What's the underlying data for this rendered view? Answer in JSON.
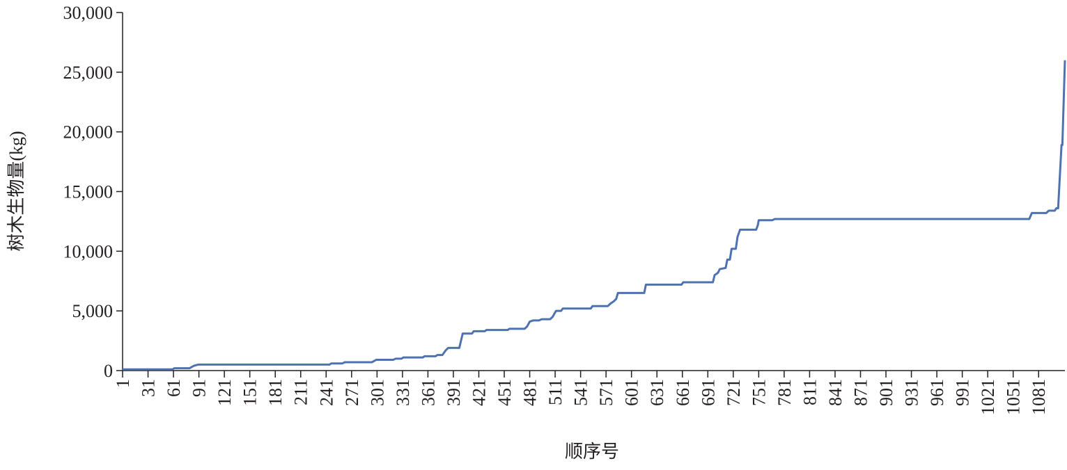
{
  "chart_data": {
    "type": "line",
    "x_label": "顺序号",
    "y_label": "树木生物量(kg)",
    "xlim": [
      1,
      1112
    ],
    "ylim": [
      0,
      30000
    ],
    "xticks": [
      1,
      31,
      61,
      91,
      121,
      151,
      181,
      211,
      241,
      271,
      301,
      331,
      361,
      391,
      421,
      451,
      481,
      511,
      541,
      571,
      601,
      631,
      661,
      691,
      721,
      751,
      781,
      811,
      841,
      871,
      901,
      931,
      961,
      991,
      1021,
      1051,
      1081
    ],
    "yticks": [
      0,
      {
        "value": 5000,
        "label": "5,000"
      },
      {
        "value": 10000,
        "label": "10,000"
      },
      {
        "value": 15000,
        "label": "15,000"
      },
      {
        "value": 20000,
        "label": "20,000"
      },
      {
        "value": 25000,
        "label": "25,000"
      },
      {
        "value": 30000,
        "label": "30,000"
      }
    ],
    "color": "#4e72b0",
    "x": [
      1,
      60,
      62,
      80,
      85,
      90,
      245,
      247,
      260,
      263,
      295,
      300,
      320,
      323,
      330,
      332,
      355,
      357,
      370,
      372,
      378,
      382,
      385,
      398,
      400,
      402,
      413,
      415,
      428,
      430,
      455,
      457,
      475,
      478,
      481,
      485,
      492,
      495,
      505,
      508,
      512,
      518,
      520,
      553,
      555,
      573,
      576,
      580,
      583,
      585,
      616,
      618,
      660,
      662,
      697,
      699,
      703,
      705,
      712,
      714,
      717,
      719,
      724,
      726,
      729,
      748,
      750,
      751,
      767,
      770,
      1070,
      1073,
      1090,
      1093,
      1100,
      1102,
      1104,
      1108,
      1109,
      1112
    ],
    "y": [
      100,
      100,
      200,
      200,
      400,
      500,
      500,
      600,
      600,
      700,
      700,
      900,
      900,
      1000,
      1000,
      1100,
      1100,
      1200,
      1200,
      1300,
      1300,
      1700,
      1900,
      1900,
      2500,
      3100,
      3100,
      3300,
      3300,
      3400,
      3400,
      3500,
      3500,
      3700,
      4100,
      4200,
      4200,
      4300,
      4300,
      4500,
      5000,
      5000,
      5200,
      5200,
      5400,
      5400,
      5600,
      5800,
      6000,
      6500,
      6500,
      7200,
      7200,
      7400,
      7400,
      8000,
      8200,
      8500,
      8600,
      9300,
      9300,
      10200,
      10200,
      11200,
      11800,
      11800,
      12200,
      12600,
      12600,
      12700,
      12700,
      13200,
      13200,
      13400,
      13400,
      13600,
      13600,
      18900,
      18900,
      26000
    ]
  }
}
